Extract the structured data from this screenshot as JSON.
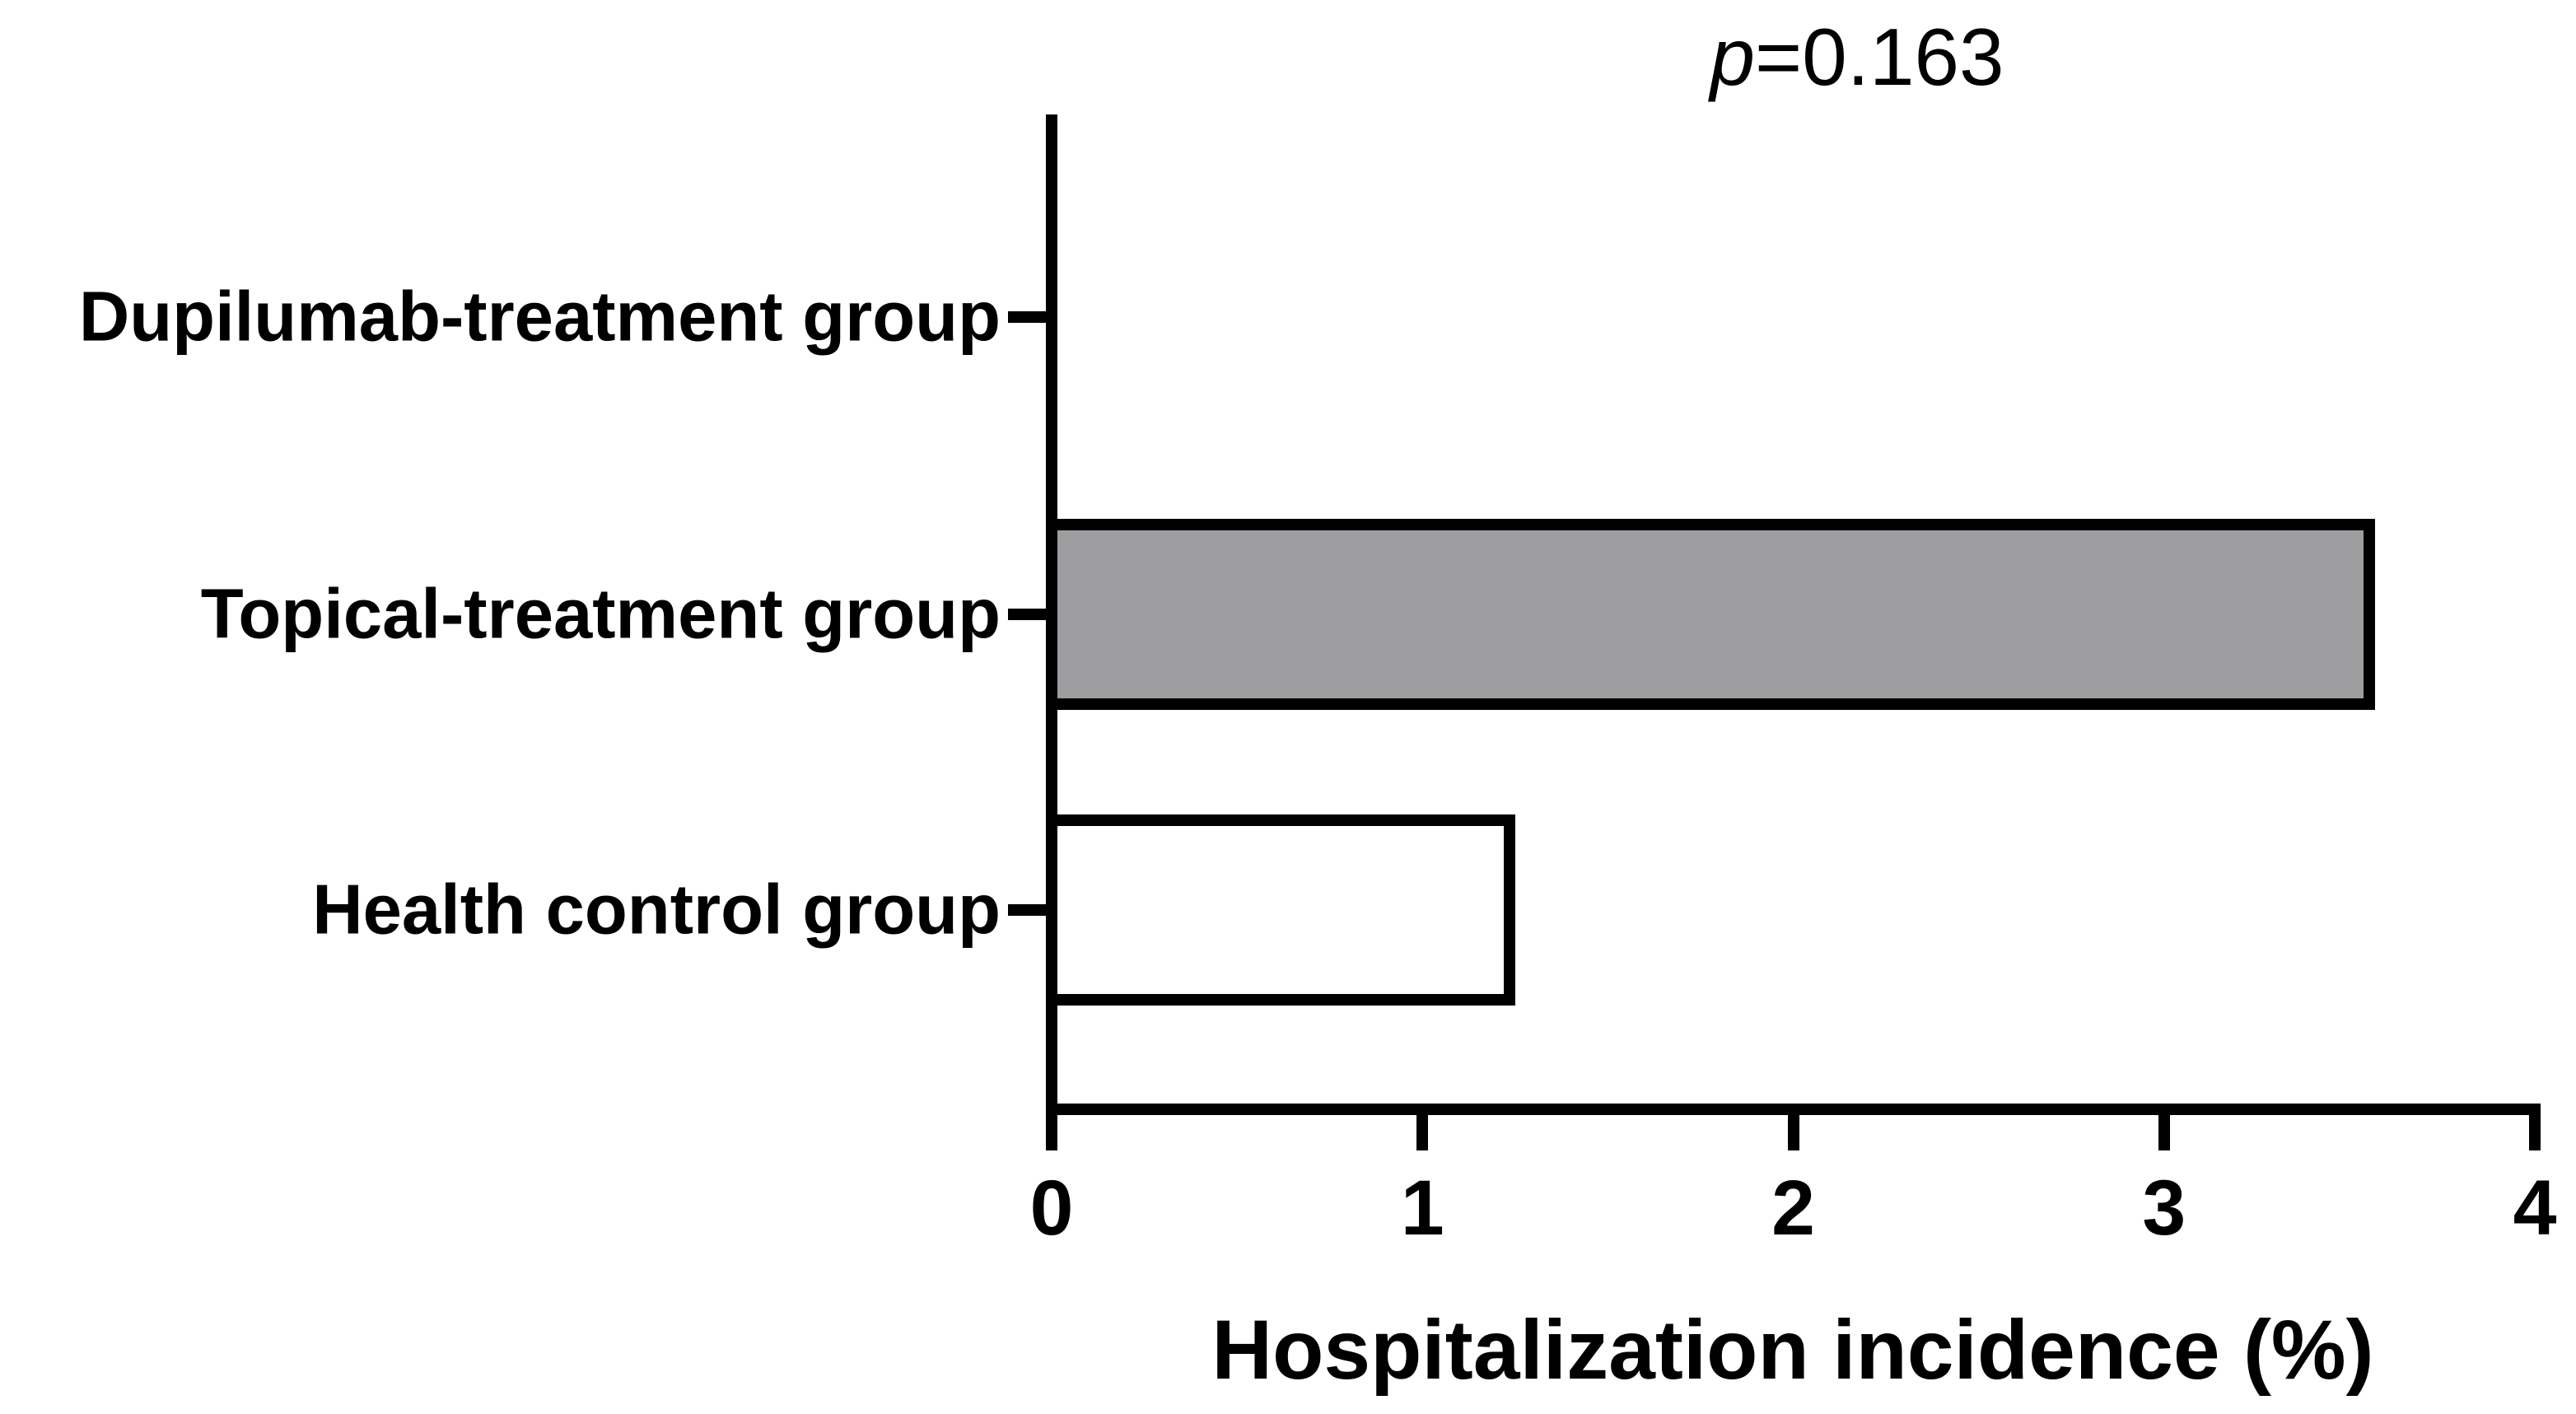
{
  "annotation": {
    "symbol": "p",
    "value": "=0.163"
  },
  "chart_data": {
    "type": "bar",
    "orientation": "horizontal",
    "title": "",
    "categories": [
      "Dupilumab-treatment group",
      "Topical-treatment group",
      "Health control group"
    ],
    "values": [
      0,
      3.57,
      1.25
    ],
    "bar_fills": [
      "#ffffff",
      "#9e9ea1",
      "#ffffff"
    ],
    "bar_border_color": "#000000",
    "xlabel": "Hospitalization incidence (%)",
    "ylabel": "",
    "xlim": [
      0,
      4
    ],
    "xticks": [
      0,
      1,
      2,
      3,
      4
    ],
    "annotation_text": "p=0.163",
    "grid": false,
    "legend": false,
    "axis_color": "#000000",
    "text_color": "#000000",
    "background_color": "#ffffff"
  }
}
